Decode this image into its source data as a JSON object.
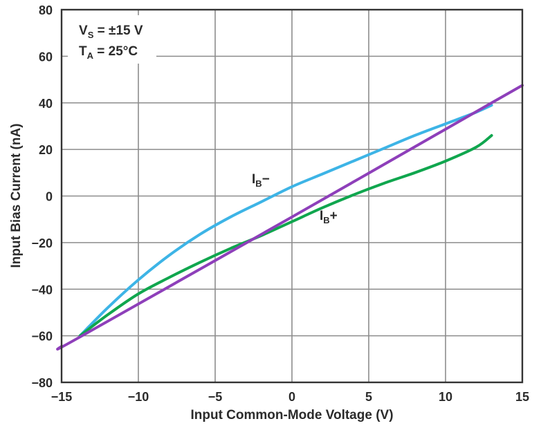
{
  "chart_data": {
    "type": "line",
    "xlabel": "Input Common-Mode Voltage  (V)",
    "ylabel": "Input Bias Current (nA)",
    "xlim": [
      -15,
      15
    ],
    "ylim": [
      -80,
      80
    ],
    "xticks": [
      -15,
      -10,
      -5,
      0,
      5,
      10,
      15
    ],
    "xtick_labels": [
      "−15",
      "−10",
      "−5",
      "0",
      "5",
      "10",
      "15"
    ],
    "yticks": [
      -80,
      -60,
      -40,
      -20,
      0,
      20,
      40,
      60,
      80
    ],
    "ytick_labels": [
      "−80",
      "−60",
      "−40",
      "−20",
      "0",
      "20",
      "40",
      "60",
      "80"
    ],
    "grid": true,
    "conditions": {
      "vs": {
        "main": "V",
        "sub": "S",
        "rest": " = ±15 V"
      },
      "ta": {
        "main": "T",
        "sub": "A",
        "rest": " = 25°C"
      }
    },
    "series": [
      {
        "name": "IB−",
        "label": {
          "main": "I",
          "sub": "B",
          "rest": "−"
        },
        "color": "#3db4e6",
        "x": [
          -13.8,
          -12,
          -10,
          -8,
          -6,
          -4,
          -2,
          0,
          2,
          4,
          6,
          8,
          10,
          12,
          13
        ],
        "y": [
          -60,
          -48,
          -36,
          -25.5,
          -16.5,
          -9,
          -2.5,
          4,
          9.5,
          15,
          20.5,
          26,
          31,
          36,
          39
        ]
      },
      {
        "name": "IB+ (green)",
        "label": {
          "main": "I",
          "sub": "B",
          "rest": "+"
        },
        "color": "#10a64e",
        "x": [
          -13.8,
          -12,
          -10,
          -8,
          -6,
          -4,
          -2,
          0,
          2,
          4,
          6,
          8,
          10,
          12,
          13
        ],
        "y": [
          -60,
          -51,
          -42,
          -35,
          -28.5,
          -22.5,
          -17,
          -11,
          -5,
          0.5,
          5.5,
          10,
          15,
          21,
          26
        ]
      },
      {
        "name": "IB+ (purple)",
        "color": "#8e3fba",
        "x": [
          -15,
          -13.8,
          0,
          13,
          15
        ],
        "y": [
          -64.5,
          -60.5,
          -9,
          40,
          47.5
        ]
      }
    ]
  }
}
